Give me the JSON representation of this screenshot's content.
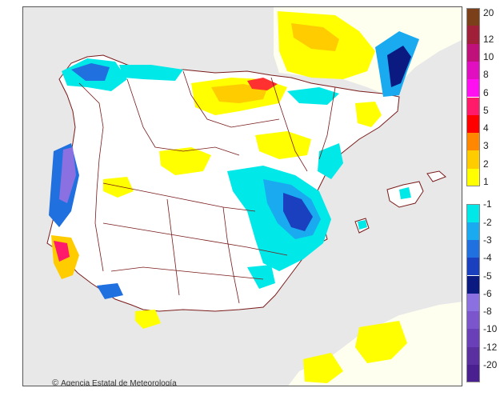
{
  "map": {
    "credit": "Agencia Estatal de Meteorología",
    "copyright_symbol": "©",
    "background_colors": {
      "sea": "#e8e8e8",
      "land": "#ffffff",
      "france": "#fffff0",
      "africa": "#fffff0",
      "borders": "#7a1a1a"
    }
  },
  "legend": {
    "positive": [
      {
        "label": "20",
        "color": "#7b3f1a"
      },
      {
        "label": "12",
        "color": "#a0203a"
      },
      {
        "label": "10",
        "color": "#c0107a"
      },
      {
        "label": "8",
        "color": "#e010c0"
      },
      {
        "label": "6",
        "color": "#ff10f0"
      },
      {
        "label": "5",
        "color": "#ff1a6a"
      },
      {
        "label": "4",
        "color": "#ff0000"
      },
      {
        "label": "3",
        "color": "#ff8800"
      },
      {
        "label": "2",
        "color": "#ffcc00"
      },
      {
        "label": "1",
        "color": "#ffff00"
      }
    ],
    "neutral_color": "#ffffff",
    "negative": [
      {
        "label": "-1",
        "color": "#00e8e8"
      },
      {
        "label": "-2",
        "color": "#1aaaf0"
      },
      {
        "label": "-3",
        "color": "#2070e0"
      },
      {
        "label": "-4",
        "color": "#1a40c0"
      },
      {
        "label": "-5",
        "color": "#0a1a80"
      },
      {
        "label": "-6",
        "color": "#8a70e0"
      },
      {
        "label": "-8",
        "color": "#7a55cc"
      },
      {
        "label": "-10",
        "color": "#6a40b8"
      },
      {
        "label": "-12",
        "color": "#5a30a0"
      },
      {
        "label": "-20",
        "color": "#4a2090"
      }
    ]
  }
}
